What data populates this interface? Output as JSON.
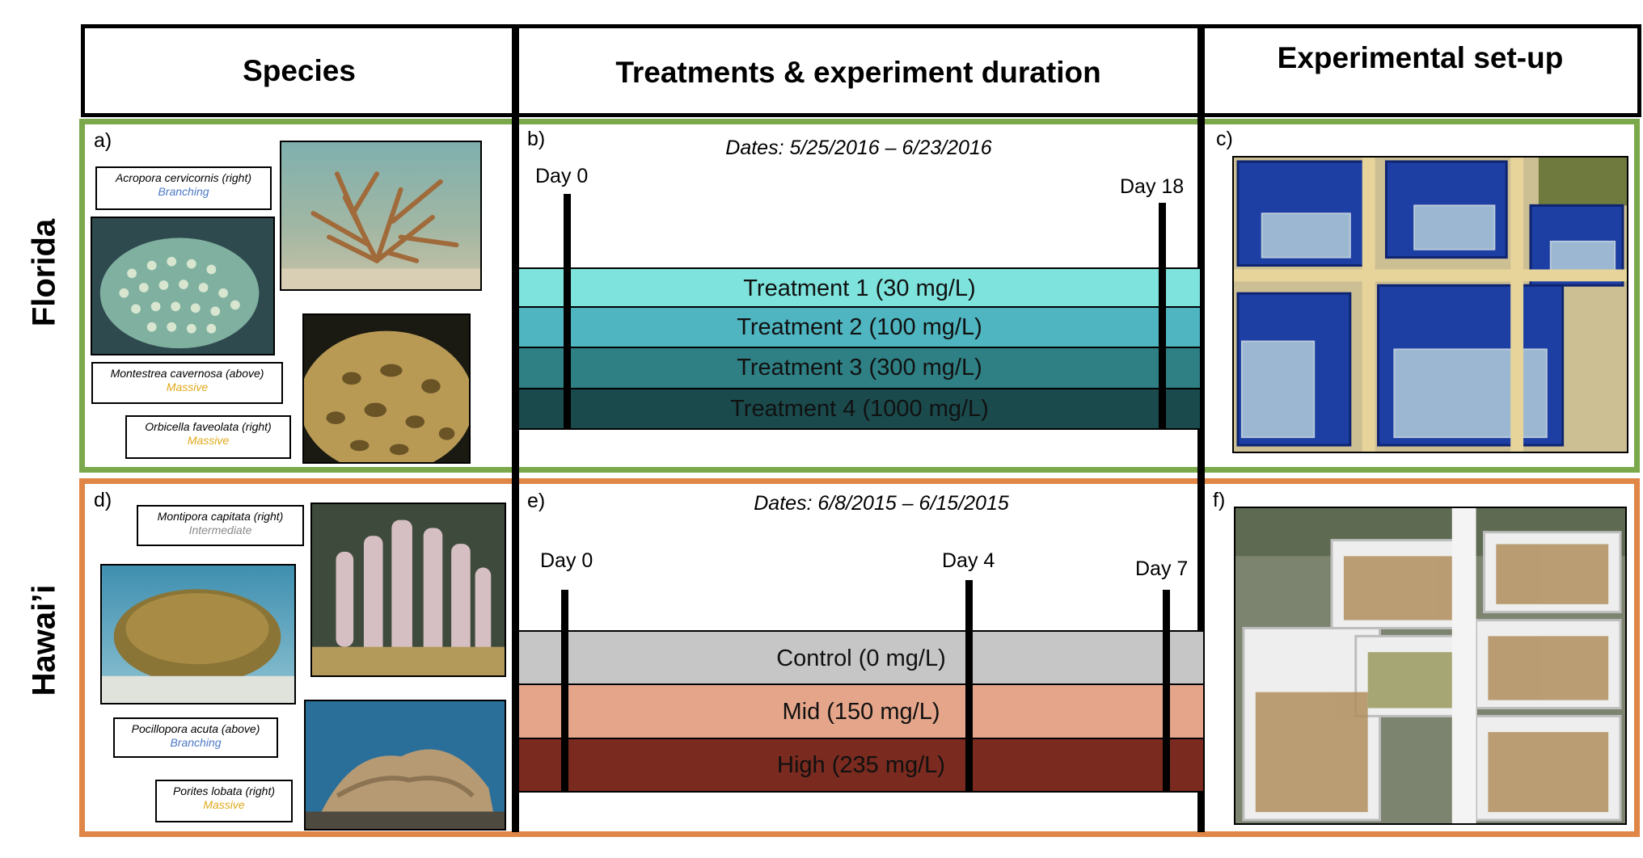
{
  "headers": {
    "species": "Species",
    "treatments": "Treatments & experiment duration",
    "setup": "Experimental set-up"
  },
  "rows": {
    "florida": {
      "label": "Florida",
      "frame_color": "#7aa84a",
      "panel_a": "a)",
      "panel_b": "b)",
      "panel_c": "c)",
      "species": [
        {
          "name": "Acropora cervicornis (right)",
          "morphology": "Branching",
          "morph_color": "#4a78c6"
        },
        {
          "name": "Montestrea cavernosa (above)",
          "morphology": "Massive",
          "morph_color": "#e0a91a"
        },
        {
          "name": "Orbicella faveolata (right)",
          "morphology": "Massive",
          "morph_color": "#e0a91a"
        }
      ],
      "dates": "Dates: 5/25/2016 – 6/23/2016",
      "days": [
        "Day 0",
        "Day 18"
      ],
      "treatments": [
        {
          "label": "Treatment 1 (30 mg/L)",
          "color": "#7de3dc"
        },
        {
          "label": "Treatment 2 (100 mg/L)",
          "color": "#4fb5c0"
        },
        {
          "label": "Treatment 3 (300 mg/L)",
          "color": "#2f8084"
        },
        {
          "label": "Treatment 4 (1000 mg/L)",
          "color": "#1a4a4c"
        }
      ]
    },
    "hawaii": {
      "label": "Hawai’i",
      "frame_color": "#e08647",
      "panel_d": "d)",
      "panel_e": "e)",
      "panel_f": "f)",
      "species": [
        {
          "name": "Montipora capitata (right)",
          "morphology": "Intermediate",
          "morph_color": "#8a8a8a"
        },
        {
          "name": "Pocillopora acuta (above)",
          "morphology": "Branching",
          "morph_color": "#4a78c6"
        },
        {
          "name": "Porites lobata (right)",
          "morphology": "Massive",
          "morph_color": "#e0a91a"
        }
      ],
      "dates": "Dates: 6/8/2015 – 6/15/2015",
      "days": [
        "Day 0",
        "Day 4",
        "Day 7"
      ],
      "treatments": [
        {
          "label": "Control (0 mg/L)",
          "color": "#c6c6c6"
        },
        {
          "label": "Mid (150 mg/L)",
          "color": "#e5a58a"
        },
        {
          "label": "High (235 mg/L)",
          "color": "#7a2a1e"
        }
      ]
    }
  }
}
